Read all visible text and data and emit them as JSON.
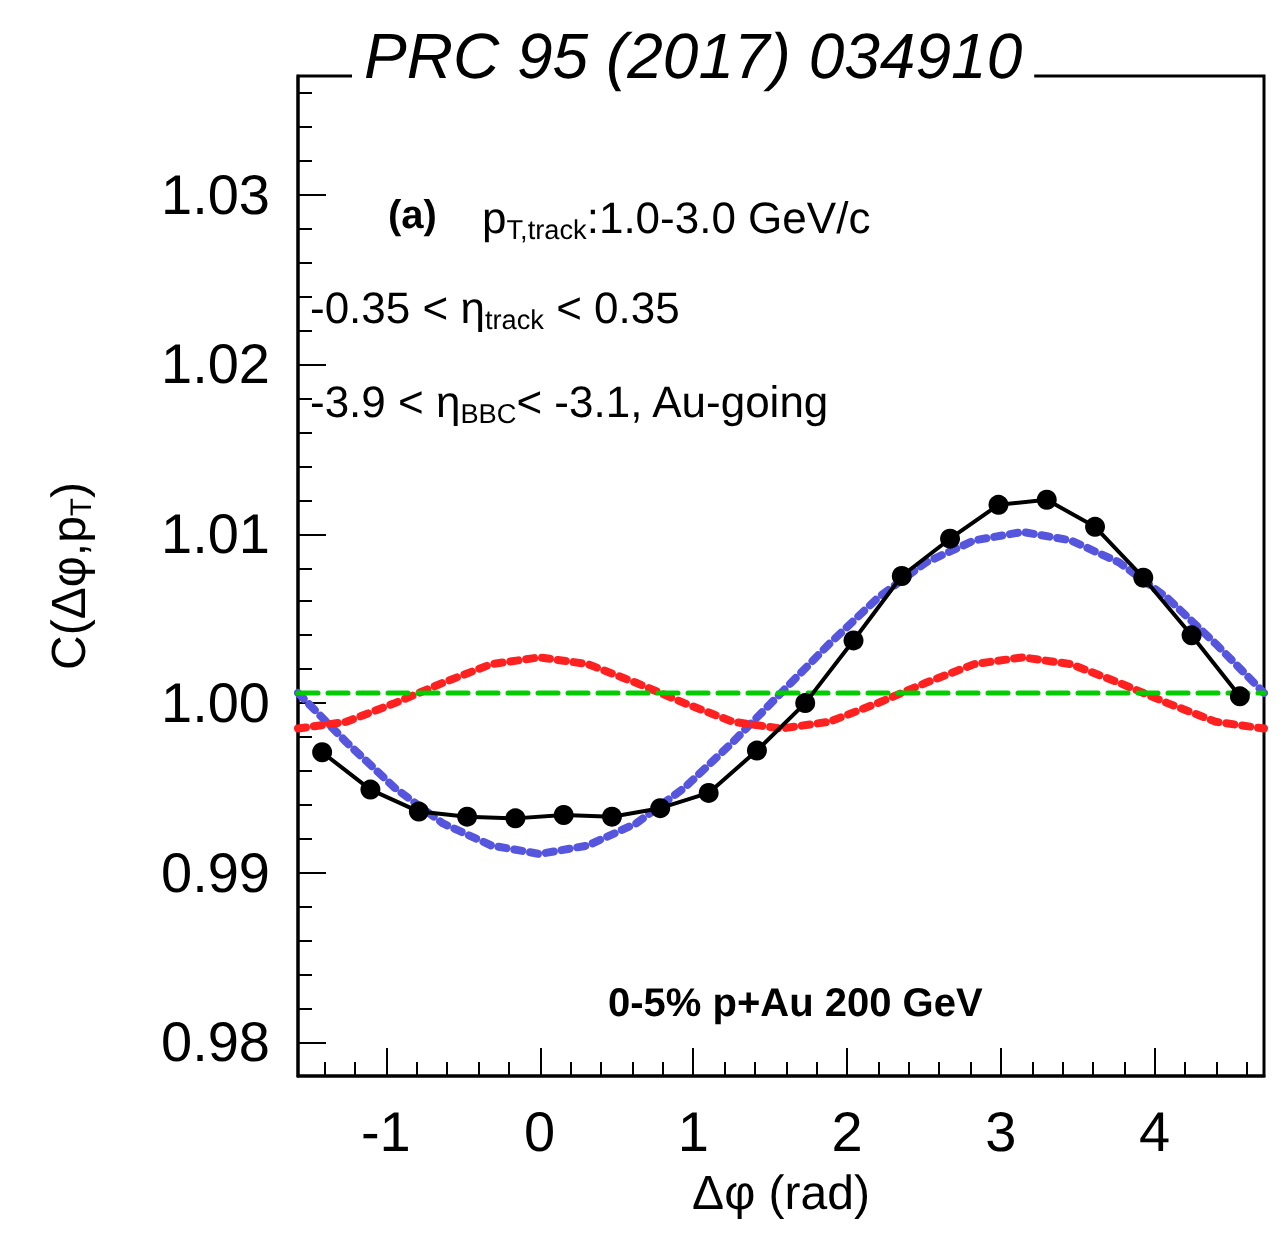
{
  "chart_data": {
    "type": "line",
    "title": "PRC 95 (2017) 034910",
    "xlabel": "Δφ (rad)",
    "ylabel": "C(Δφ,p$_{T}$)",
    "annotations": [
      "(a)",
      "p$_{T,track}$:1.0-3.0 GeV/c",
      "-0.35 < η$_{track}$ < 0.35",
      "-3.9 < η$_{BBC}$< -3.1, Au-going",
      "0-5% p+Au 200 GeV"
    ],
    "xlim": [
      -1.571,
      4.712
    ],
    "xticks": [
      -1,
      0,
      1,
      2,
      3,
      4
    ],
    "ylim": [
      0.978,
      1.037
    ],
    "yticks": [
      0.98,
      0.99,
      {
        "value": 1,
        "label": "1.00"
      },
      1.01,
      1.02,
      1.03
    ],
    "series": [
      {
        "color": "#5555dd",
        "line_style": "dotted",
        "marker": "none",
        "x": [
          -1.571,
          -1.257,
          -0.942,
          -0.628,
          -0.314,
          0,
          0.314,
          0.628,
          0.942,
          1.257,
          1.571,
          1.885,
          2.199,
          2.513,
          2.827,
          3.142,
          3.456,
          3.77,
          4.084,
          4.398,
          4.712
        ],
        "values": [
          1.0006,
          0.9977,
          0.995,
          0.9929,
          0.9916,
          0.9911,
          0.9916,
          0.9929,
          0.995,
          0.9977,
          1.0006,
          1.0035,
          1.0062,
          1.0083,
          1.0096,
          1.0101,
          1.0096,
          1.0083,
          1.0062,
          1.0035,
          1.0006
        ]
      },
      {
        "color": "#ff2020",
        "line_style": "dotted",
        "marker": "none",
        "x": [
          -1.571,
          -1.257,
          -0.942,
          -0.628,
          -0.314,
          0,
          0.314,
          0.628,
          0.942,
          1.257,
          1.571,
          1.885,
          2.199,
          2.513,
          2.827,
          3.142,
          3.456,
          3.77,
          4.084,
          4.398,
          4.712
        ],
        "values": [
          0.9985,
          0.9989,
          1.0,
          1.0012,
          1.0023,
          1.0027,
          1.0023,
          1.0012,
          1.0,
          0.9989,
          0.9985,
          0.9989,
          1.0,
          1.0012,
          1.0023,
          1.0027,
          1.0023,
          1.0012,
          1.0,
          0.9989,
          0.9985
        ]
      },
      {
        "color": "#00cc00",
        "line_style": "dashed",
        "marker": "none",
        "x": [
          -1.571,
          4.712
        ],
        "values": [
          1.0006,
          1.0006
        ]
      },
      {
        "color": "#000000",
        "line_style": "solid",
        "marker": "circle",
        "x": [
          -1.414,
          -1.1,
          -0.785,
          -0.471,
          -0.157,
          0.157,
          0.471,
          0.785,
          1.1,
          1.414,
          1.728,
          2.042,
          2.356,
          2.67,
          2.985,
          3.299,
          3.613,
          3.927,
          4.241,
          4.555
        ],
        "values": [
          0.9971,
          0.9949,
          0.9936,
          0.9933,
          0.9932,
          0.9934,
          0.9933,
          0.9938,
          0.9947,
          0.9972,
          1.0,
          1.0037,
          1.0075,
          1.0097,
          1.0117,
          1.012,
          1.0104,
          1.0074,
          1.004,
          1.0004
        ]
      }
    ]
  }
}
